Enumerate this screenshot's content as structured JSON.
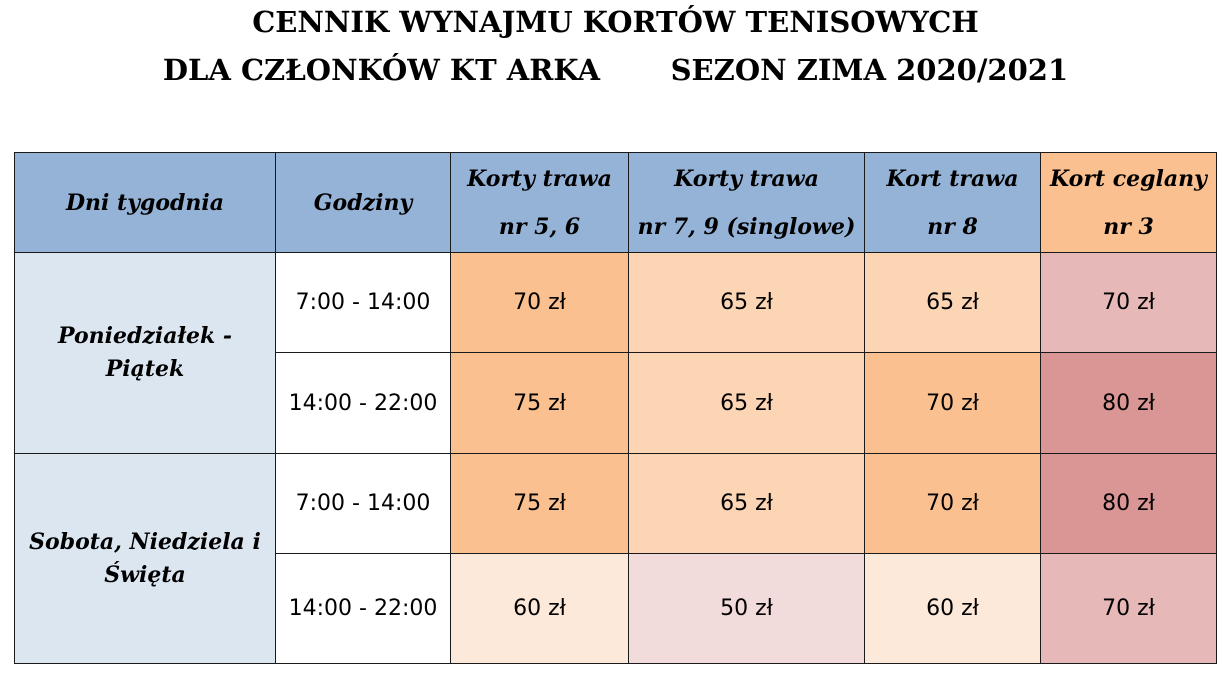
{
  "title": {
    "line1": "CENNIK WYNAJMU KORTÓW TENISOWYCH",
    "line2": "DLA CZŁONKÓW KT ARKA       SEZON ZIMA 2020/2021"
  },
  "columns": {
    "days": "Dni tygodnia",
    "hours": "Godziny",
    "court_5_6": [
      "Korty trawa",
      "nr 5, 6"
    ],
    "court_7_9": [
      "Korty trawa",
      "nr 7, 9 (singlowe)"
    ],
    "court_8": [
      "Kort trawa",
      "nr 8"
    ],
    "court_3": [
      "Kort ceglany",
      "nr 3"
    ]
  },
  "day_groups": [
    {
      "label": [
        "Poniedziałek -",
        "Piątek"
      ]
    },
    {
      "label": [
        "Sobota, Niedziela i",
        "Święta"
      ]
    }
  ],
  "rows": [
    {
      "hours": "7:00 - 14:00",
      "prices": [
        "70 zł",
        "65 zł",
        "65 zł",
        "70 zł"
      ],
      "colors": [
        "#fac090",
        "#fcd5b4",
        "#fcd5b4",
        "#e6b8b7"
      ]
    },
    {
      "hours": "14:00 - 22:00",
      "prices": [
        "75 zł",
        "65 zł",
        "70 zł",
        "80 zł"
      ],
      "colors": [
        "#fac090",
        "#fcd5b4",
        "#fac090",
        "#da9694"
      ]
    },
    {
      "hours": "7:00 - 14:00",
      "prices": [
        "75 zł",
        "65 zł",
        "70 zł",
        "80 zł"
      ],
      "colors": [
        "#fac090",
        "#fcd5b4",
        "#fac090",
        "#da9694"
      ]
    },
    {
      "hours": "14:00 - 22:00",
      "prices": [
        "60 zł",
        "50 zł",
        "60 zł",
        "70 zł"
      ],
      "colors": [
        "#fde9d9",
        "#f2dcdb",
        "#fde9d9",
        "#e6b8b7"
      ]
    }
  ]
}
